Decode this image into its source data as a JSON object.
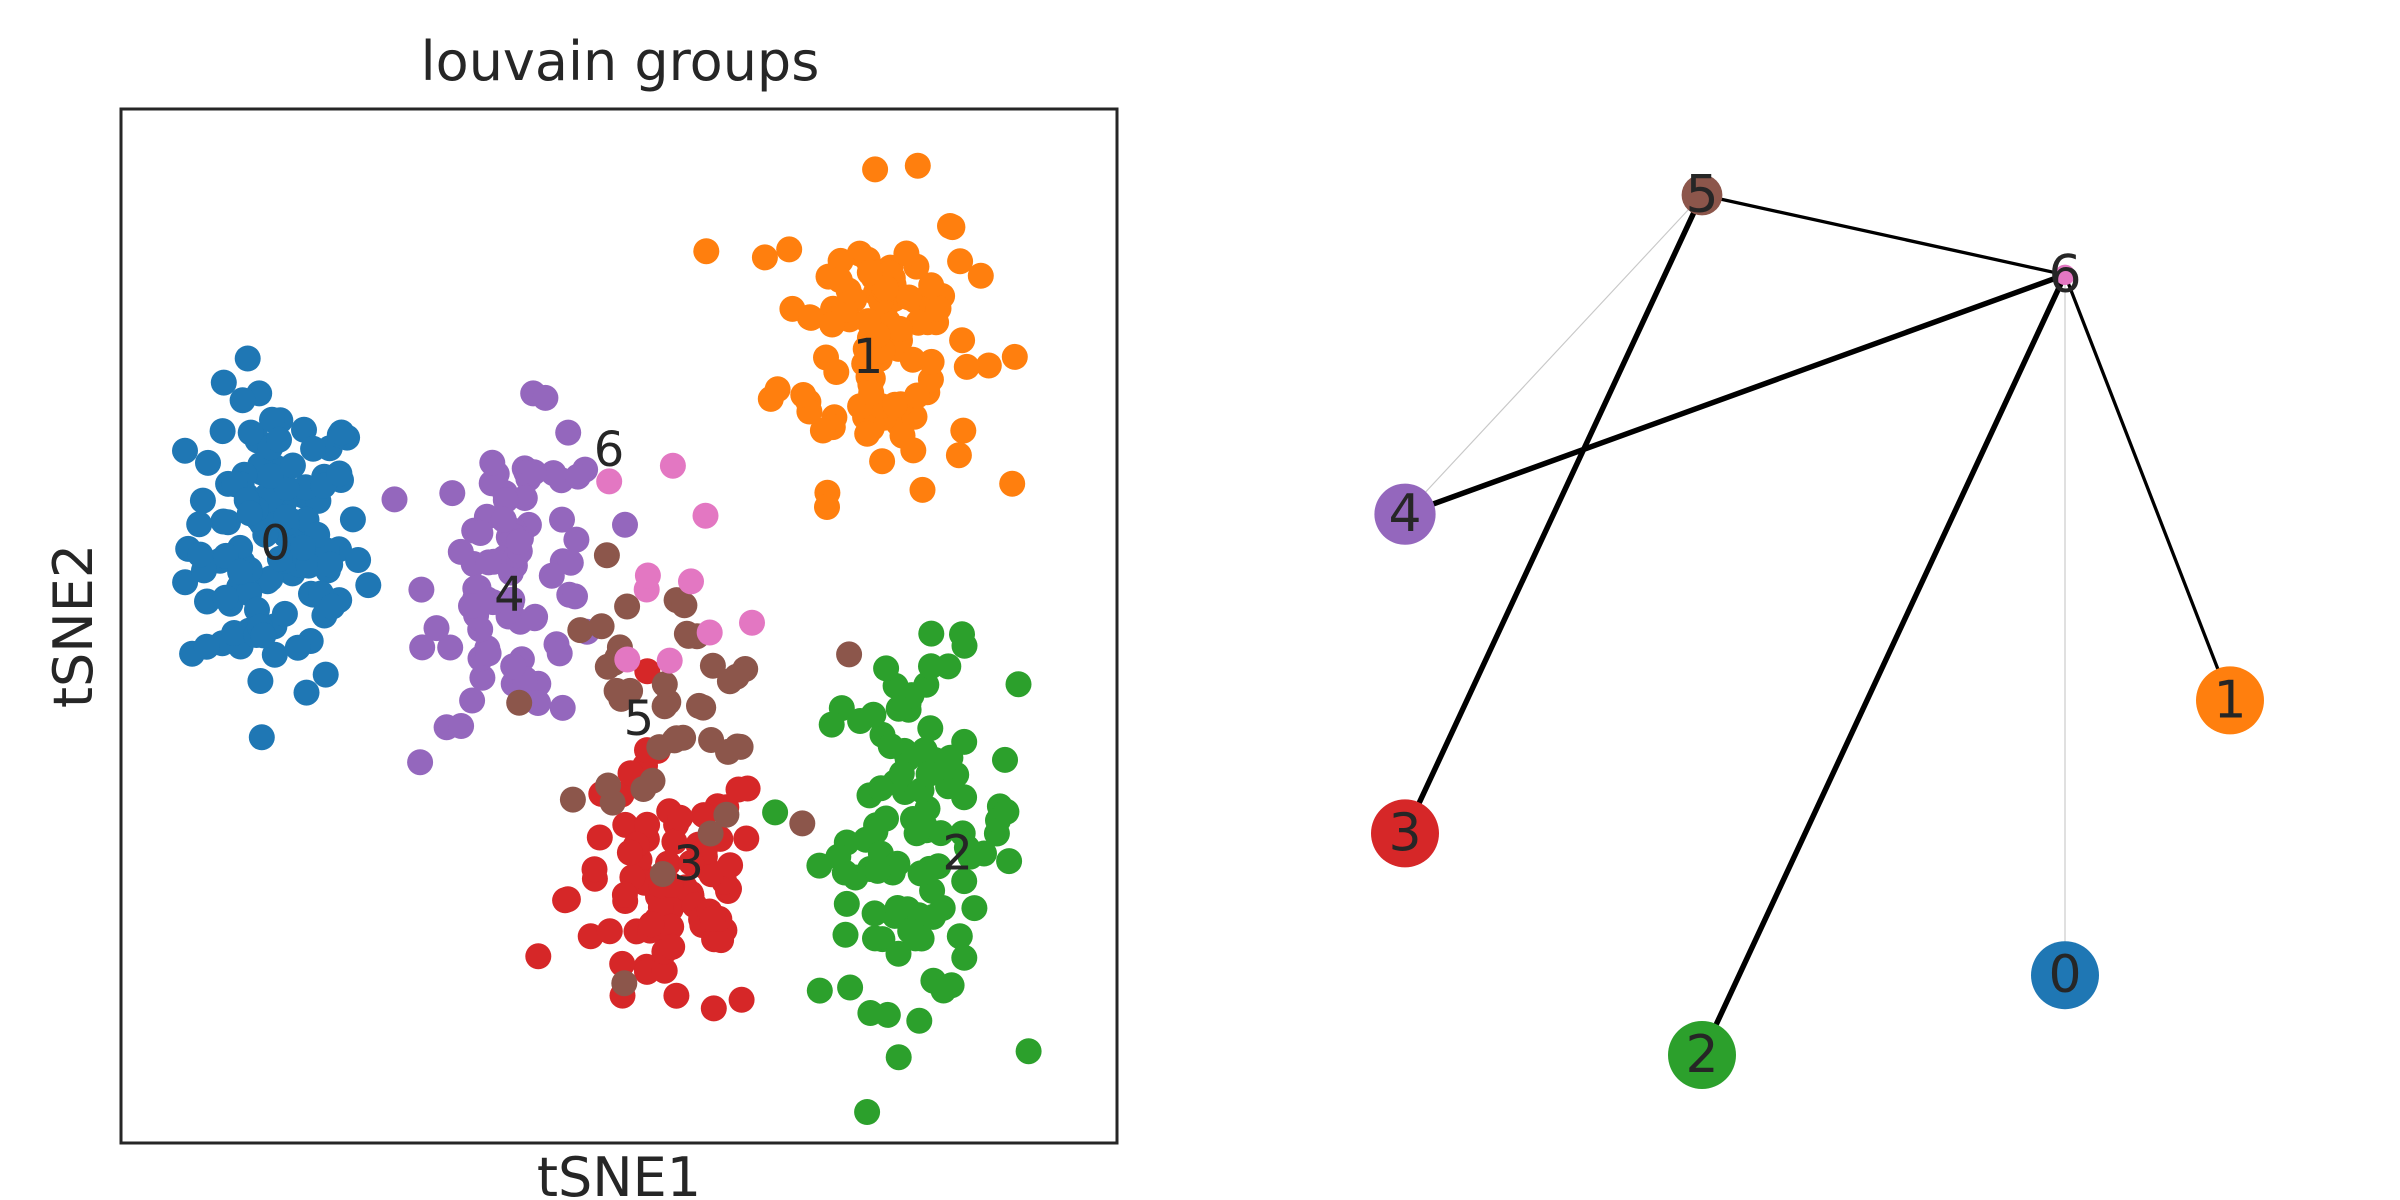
{
  "chart_data": [
    {
      "type": "scatter",
      "title": "louvain groups",
      "xlabel": "tSNE1",
      "ylabel": "tSNE2",
      "xlim": [
        0,
        100
      ],
      "ylim": [
        0,
        100
      ],
      "grid": false,
      "legend": "on data",
      "groups": [
        {
          "name": "0",
          "color": "#1f77b4",
          "center": [
            15.5,
            58
          ],
          "spread": [
            8,
            13
          ],
          "n": 120,
          "label_pos": [
            15.5,
            58
          ]
        },
        {
          "name": "1",
          "color": "#ff7f0e",
          "center": [
            76,
            78
          ],
          "spread": [
            9,
            13
          ],
          "n": 110,
          "label_pos": [
            75,
            76
          ]
        },
        {
          "name": "2",
          "color": "#2ca02c",
          "center": [
            80,
            30
          ],
          "spread": [
            9,
            15
          ],
          "n": 105,
          "label_pos": [
            84,
            28
          ]
        },
        {
          "name": "3",
          "color": "#d62728",
          "center": [
            55,
            24
          ],
          "spread": [
            9,
            12
          ],
          "n": 85,
          "label_pos": [
            57,
            27
          ]
        },
        {
          "name": "4",
          "color": "#9467bd",
          "center": [
            40,
            55
          ],
          "spread": [
            8,
            13
          ],
          "n": 85,
          "label_pos": [
            39,
            53
          ]
        },
        {
          "name": "5",
          "color": "#8c564b",
          "center": [
            54,
            42
          ],
          "spread": [
            11,
            12
          ],
          "n": 45,
          "label_pos": [
            52,
            41
          ]
        },
        {
          "name": "6",
          "color": "#e377c2",
          "center": [
            56,
            56
          ],
          "spread": [
            8,
            10
          ],
          "n": 10,
          "label_pos": [
            49,
            67
          ]
        }
      ]
    },
    {
      "type": "graph",
      "title": "",
      "nodes": [
        {
          "name": "0",
          "color": "#1f77b4",
          "x": 1.0,
          "y": 0.12,
          "size": 1.0
        },
        {
          "name": "1",
          "color": "#ff7f0e",
          "x": 1.25,
          "y": 0.43,
          "size": 1.0
        },
        {
          "name": "2",
          "color": "#2ca02c",
          "x": 0.45,
          "y": 0.03,
          "size": 1.0
        },
        {
          "name": "3",
          "color": "#d62728",
          "x": 0.0,
          "y": 0.28,
          "size": 1.0
        },
        {
          "name": "4",
          "color": "#9467bd",
          "x": 0.0,
          "y": 0.64,
          "size": 0.9
        },
        {
          "name": "5",
          "color": "#8c564b",
          "x": 0.45,
          "y": 1.0,
          "size": 0.6
        },
        {
          "name": "6",
          "color": "#e377c2",
          "x": 1.0,
          "y": 0.91,
          "size": 0.3
        }
      ],
      "edges": [
        {
          "source": "5",
          "target": "6",
          "weight": 0.5
        },
        {
          "source": "5",
          "target": "4",
          "weight": 0.1
        },
        {
          "source": "5",
          "target": "3",
          "weight": 0.9
        },
        {
          "source": "6",
          "target": "4",
          "weight": 0.9
        },
        {
          "source": "6",
          "target": "2",
          "weight": 0.9
        },
        {
          "source": "6",
          "target": "1",
          "weight": 0.5
        },
        {
          "source": "6",
          "target": "0",
          "weight": 0.1
        }
      ]
    }
  ]
}
